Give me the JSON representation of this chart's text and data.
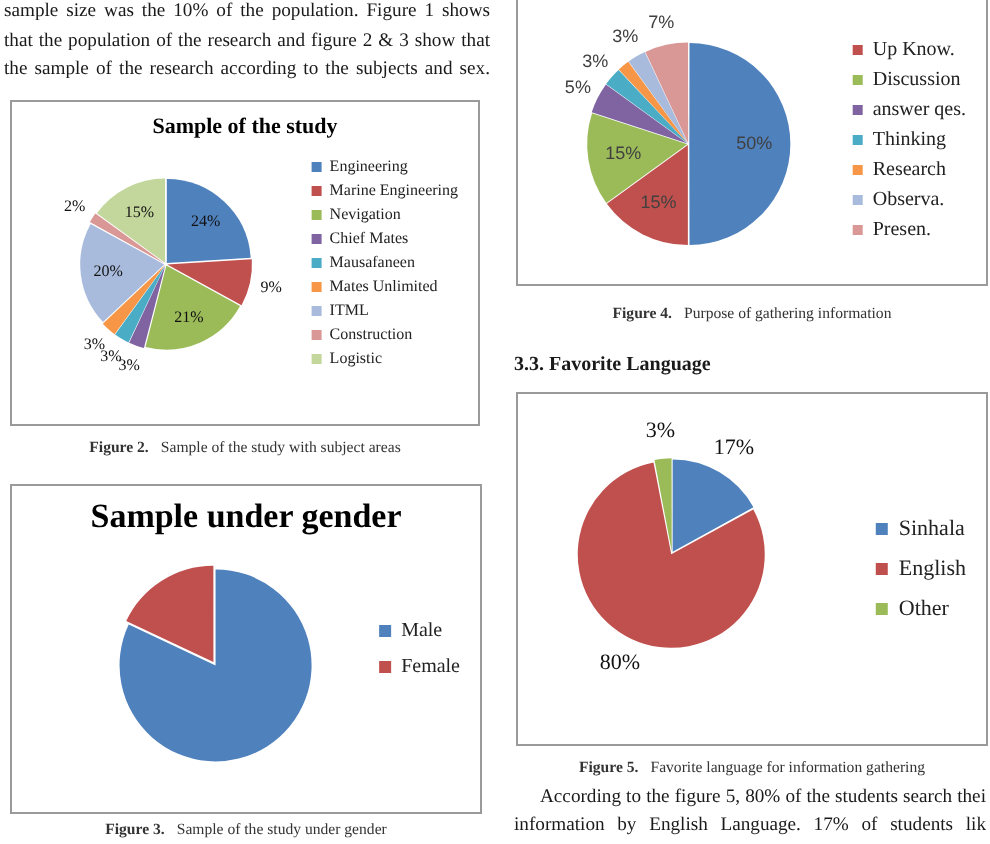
{
  "chart_data": [
    {
      "type": "pie",
      "title": "Sample of the study",
      "categories": [
        "Engineering",
        "Marine Engineering",
        "Nevigation",
        "Chief Mates",
        "Mausafaneen",
        "Mates Unlimited",
        "ITML",
        "Construction",
        "Logistic"
      ],
      "values": [
        24,
        9,
        21,
        3,
        3,
        3,
        20,
        2,
        15
      ],
      "colors": [
        "#4f81bd",
        "#c0504d",
        "#9bbb59",
        "#8064a2",
        "#4bacc6",
        "#f79646",
        "#a9bbdc",
        "#d99795",
        "#c3d69b"
      ],
      "value_labels": [
        "24%",
        "9%",
        "21%",
        "3%",
        "3%",
        "3%",
        "20%",
        "2%",
        "15%"
      ],
      "legend": "right",
      "annotations": [
        "sample size was the 10% of the population. Figure 1 shows",
        "that the population of the research and figure 2 & 3 show that",
        "the sample of the research according to the subjects and sex.",
        "Figure 2. Sample of the study with subject areas"
      ]
    },
    {
      "type": "pie",
      "title": "Sample under gender",
      "categories": [
        "Male",
        "Female"
      ],
      "values": [
        82,
        18
      ],
      "colors": [
        "#4f81bd",
        "#c0504d"
      ],
      "legend": "right",
      "annotations": [
        "Figure 3. Sample of the study under gender"
      ]
    },
    {
      "type": "pie",
      "categories": [
        null,
        "Up Know.",
        "Discussion",
        "answer qes.",
        "Thinking",
        "Research",
        "Observa.",
        "Presen."
      ],
      "values": [
        50,
        15,
        15,
        5,
        3,
        2,
        3,
        7
      ],
      "colors": [
        "#4f81bd",
        "#c0504d",
        "#9bbb59",
        "#8064a2",
        "#4bacc6",
        "#f79646",
        "#a9bbdc",
        "#d99795"
      ],
      "value_labels": [
        "50%",
        "15%",
        "15%",
        "5%",
        "3%",
        null,
        "3%",
        "7%"
      ],
      "legend": "right",
      "annotations": [
        "Figure 4. Purpose of gathering information"
      ]
    },
    {
      "type": "pie",
      "categories": [
        "Sinhala",
        "English",
        "Other"
      ],
      "values": [
        17,
        80,
        3
      ],
      "colors": [
        "#4f81bd",
        "#c0504d",
        "#9bbb59"
      ],
      "value_labels": [
        "17%",
        "80%",
        "3%"
      ],
      "legend": "right",
      "annotations": [
        "3.3. Favorite Language",
        "Figure 5. Favorite language for information gathering",
        "According to the figure 5, 80% of the students search thei",
        "information by English Language. 17% of students lik"
      ]
    }
  ]
}
